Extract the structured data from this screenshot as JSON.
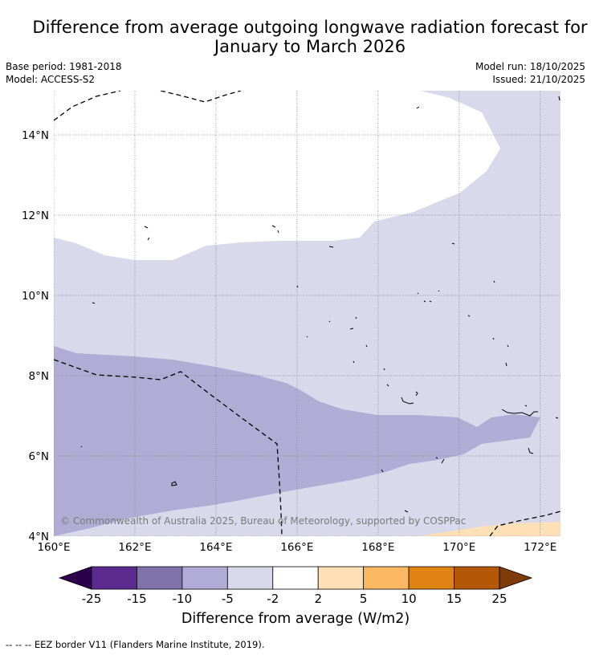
{
  "header": {
    "title_line1": "Difference from average outgoing longwave radiation forecast for",
    "title_line2": "January to March 2026",
    "base_period": "Base period: 1981-2018",
    "model": "Model: ACCESS-S2",
    "model_run": "Model run: 18/10/2025",
    "issued": "Issued: 21/10/2025"
  },
  "map": {
    "x_ticks": [
      "160°E",
      "162°E",
      "164°E",
      "166°E",
      "168°E",
      "170°E",
      "172°E"
    ],
    "y_ticks": [
      "14°N",
      "12°N",
      "10°N",
      "8°N",
      "6°N",
      "4°N"
    ],
    "lon_range": [
      160,
      172.5
    ],
    "lat_range": [
      4,
      15.1
    ],
    "copyright": "© Commonwealth of Australia 2025, Bureau of Meteorology, supported by COSPPac",
    "colors": {
      "minus5_to_minus2": "#d9d9eb",
      "minus10_to_minus5": "#b1acd5",
      "plus2_to_plus5": "#fee0b6",
      "neutral": "#ffffff"
    }
  },
  "colorbar": {
    "tick_labels": [
      "-25",
      "-15",
      "-10",
      "-5",
      "-2",
      "2",
      "5",
      "10",
      "15",
      "25"
    ],
    "colors": [
      "#5b2a8f",
      "#8073ac",
      "#b1acd5",
      "#d9d9eb",
      "#ffffff",
      "#fee0b6",
      "#fdb863",
      "#e08214",
      "#b35806"
    ],
    "under_color": "#2d004b",
    "over_color": "#7f3b08",
    "title": "Difference from average (W/m2)"
  },
  "footnote": "--  --  -- EEZ border V11 (Flanders Marine Institute, 2019)."
}
